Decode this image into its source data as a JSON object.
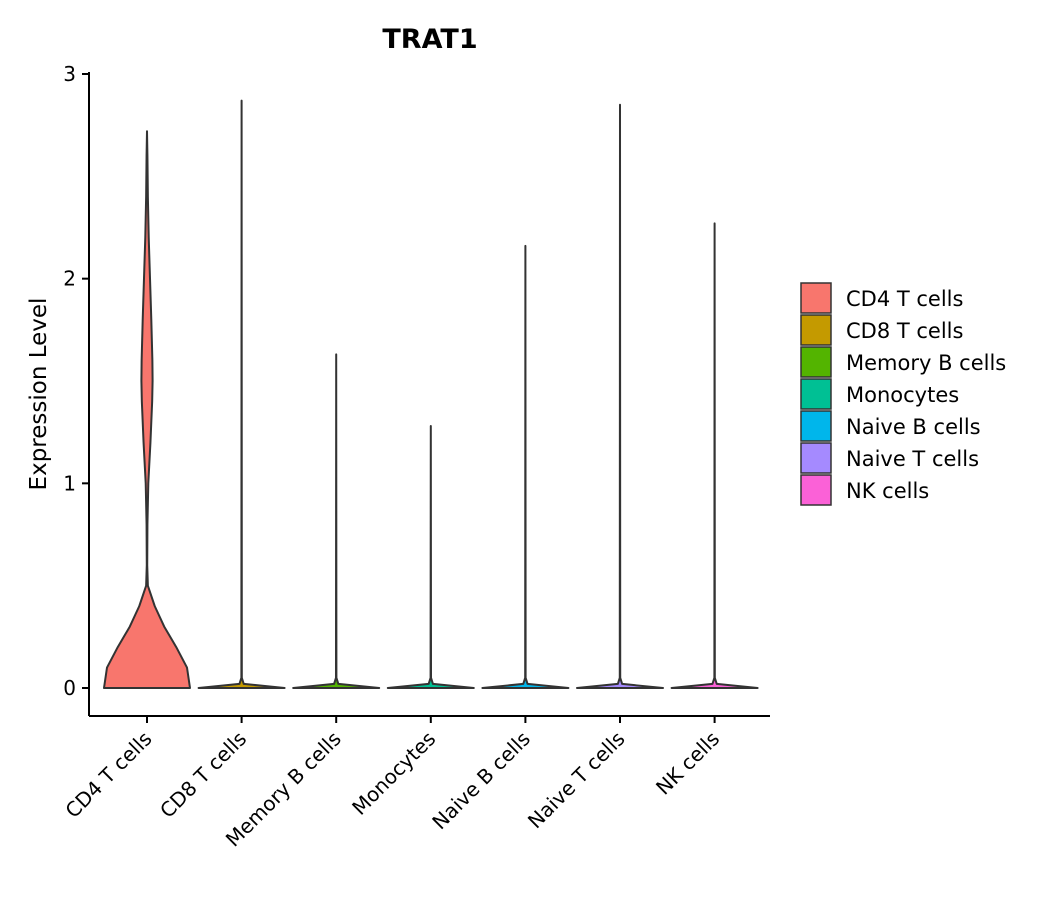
{
  "chart_data": {
    "type": "violin",
    "title": "TRAT1",
    "xlabel": "",
    "ylabel": "Expression Level",
    "ylim": [
      -0.14,
      3.0
    ],
    "yticks": [
      0,
      1,
      2,
      3
    ],
    "ytick_labels": [
      "0",
      "1",
      "2",
      "3"
    ],
    "categories": [
      "CD4 T cells",
      "CD8 T cells",
      "Memory B cells",
      "Monocytes",
      "Naive B cells",
      "Naive T cells",
      "NK cells"
    ],
    "colors": [
      "#F8766D",
      "#C49A00",
      "#53B400",
      "#00C094",
      "#00B6EB",
      "#A58AFF",
      "#FB61D7"
    ],
    "legend_position": "right",
    "series": [
      {
        "name": "CD4 T cells",
        "max": 2.72,
        "density": [
          [
            0.0,
            1.0
          ],
          [
            0.1,
            0.93
          ],
          [
            0.2,
            0.68
          ],
          [
            0.3,
            0.4
          ],
          [
            0.4,
            0.18
          ],
          [
            0.5,
            0.02
          ],
          [
            0.6,
            0.005
          ],
          [
            0.8,
            0.01
          ],
          [
            1.0,
            0.03
          ],
          [
            1.2,
            0.08
          ],
          [
            1.4,
            0.12
          ],
          [
            1.5,
            0.13
          ],
          [
            1.6,
            0.125
          ],
          [
            1.8,
            0.1
          ],
          [
            2.0,
            0.07
          ],
          [
            2.2,
            0.04
          ],
          [
            2.4,
            0.02
          ],
          [
            2.6,
            0.01
          ],
          [
            2.72,
            0.0
          ]
        ]
      },
      {
        "name": "CD8 T cells",
        "max": 2.87,
        "density": [
          [
            0.0,
            1.0
          ],
          [
            0.02,
            0.05
          ],
          [
            0.05,
            0.005
          ],
          [
            2.87,
            0.0
          ]
        ]
      },
      {
        "name": "Memory B cells",
        "max": 1.63,
        "density": [
          [
            0.0,
            1.0
          ],
          [
            0.02,
            0.05
          ],
          [
            0.05,
            0.005
          ],
          [
            1.63,
            0.0
          ]
        ]
      },
      {
        "name": "Monocytes",
        "max": 1.28,
        "density": [
          [
            0.0,
            1.0
          ],
          [
            0.02,
            0.05
          ],
          [
            0.05,
            0.005
          ],
          [
            1.28,
            0.0
          ]
        ]
      },
      {
        "name": "Naive B cells",
        "max": 2.16,
        "density": [
          [
            0.0,
            1.0
          ],
          [
            0.02,
            0.05
          ],
          [
            0.05,
            0.005
          ],
          [
            2.16,
            0.0
          ]
        ]
      },
      {
        "name": "Naive T cells",
        "max": 2.85,
        "density": [
          [
            0.0,
            1.0
          ],
          [
            0.02,
            0.05
          ],
          [
            0.05,
            0.005
          ],
          [
            2.85,
            0.0
          ]
        ]
      },
      {
        "name": "NK cells",
        "max": 2.27,
        "density": [
          [
            0.0,
            1.0
          ],
          [
            0.02,
            0.05
          ],
          [
            0.05,
            0.005
          ],
          [
            2.27,
            0.0
          ]
        ]
      }
    ]
  }
}
